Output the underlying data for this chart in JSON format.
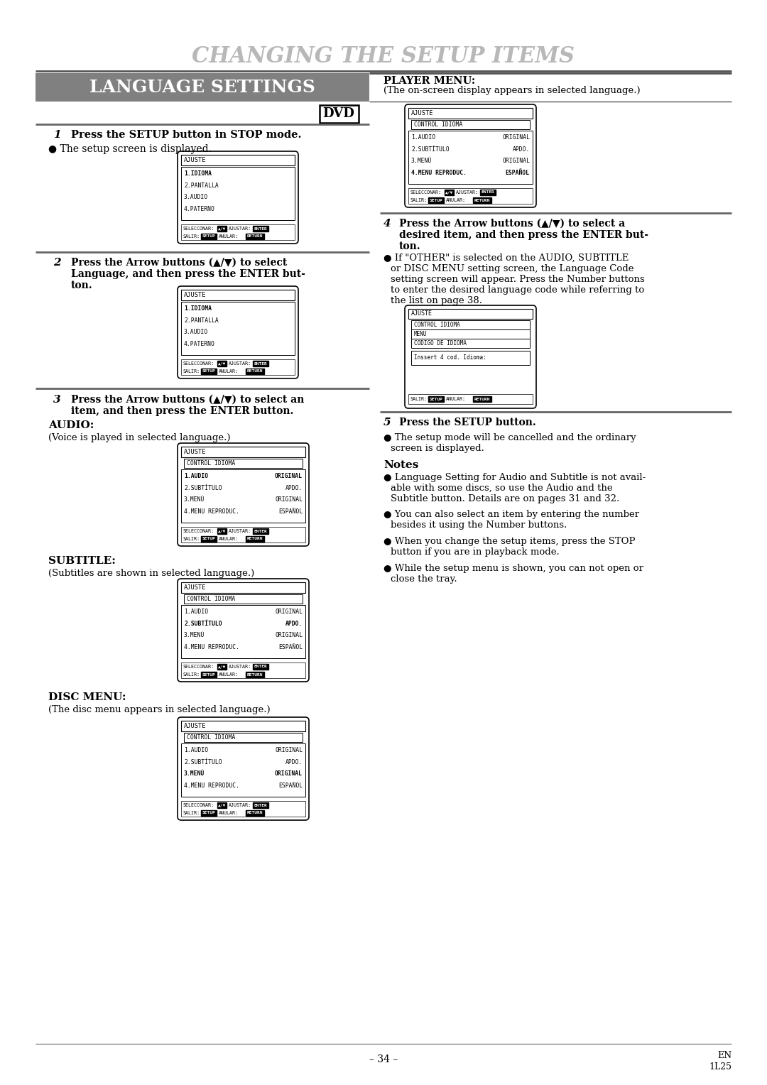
{
  "title": "CHANGING THE SETUP ITEMS",
  "section_title": "LANGUAGE SETTINGS",
  "bg_color": "#ffffff",
  "title_color": "#b0b0b0",
  "section_bg": "#808080",
  "dvd_label": "DVD",
  "screen1_title": "AJUSTE",
  "screen1_lines": [
    "1.IDIOMA",
    "2.PANTALLA",
    "3.AUDIO",
    "4.PATERNO"
  ],
  "screen1_bold": 0,
  "screen2_title": "AJUSTE",
  "screen2_lines": [
    "1.IDIOMA",
    "2.PANTALLA",
    "3.AUDIO",
    "4.PATERNO"
  ],
  "screen2_bold": 0,
  "screen3_title": "AJUSTE",
  "screen3_sub": "CONTROL IDIOMA",
  "screen3_lines_left": [
    "1.AUDIO",
    "2.SUBTÍTULO",
    "3.MENÚ",
    "4.MENU REPRODUC."
  ],
  "screen3_lines_right": [
    "ORIGINAL",
    "APDO.",
    "ORIGINAL",
    "ESPAÑOL"
  ],
  "screen3_bold": 0,
  "screen4_title": "AJUSTE",
  "screen4_sub": "CONTROL IDIOMA",
  "screen4_lines_left": [
    "1.AUDIO",
    "2.SUBTÍTULO",
    "3.MENÚ",
    "4.MENU REPRODUC."
  ],
  "screen4_lines_right": [
    "ORIGINAL",
    "APDO.",
    "ORIGINAL",
    "ESPAÑOL"
  ],
  "screen4_bold": 1,
  "screen5_title": "AJUSTE",
  "screen5_sub": "CONTROL IDIOMA",
  "screen5_lines_left": [
    "1.AUDIO",
    "2.SUBTÍTULO",
    "3.MENÚ",
    "4.MENU REPRODUC."
  ],
  "screen5_lines_right": [
    "ORIGINAL",
    "APDO.",
    "ORIGINAL",
    "ESPAÑOL"
  ],
  "screen5_bold": 2,
  "screenR1_title": "AJUSTE",
  "screenR1_sub": "CONTROL IDIOMA",
  "screenR1_lines_left": [
    "1.AUDIO",
    "2.SUBTÍTULO",
    "3.MENÚ",
    "4.MENU REPRODUC."
  ],
  "screenR1_lines_right": [
    "ORIGINAL",
    "APDO.",
    "ORIGINAL",
    "ESPAÑOL"
  ],
  "screenR1_bold": 3,
  "footer_page": "– 34 –",
  "footer_en": "EN",
  "footer_code": "1L25"
}
